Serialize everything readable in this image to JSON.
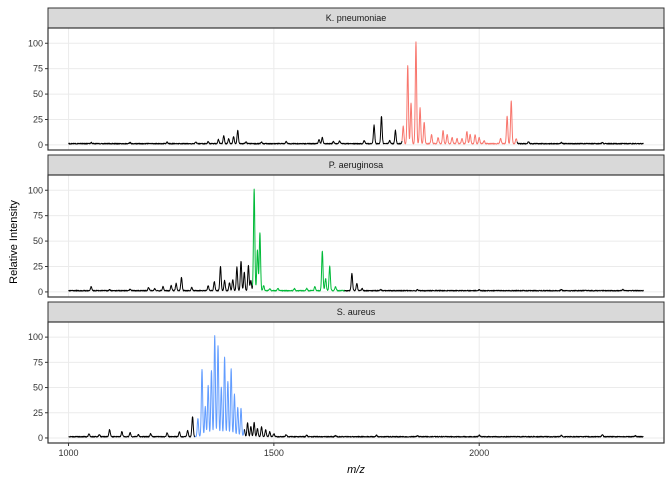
{
  "chart_data": {
    "type": "line",
    "facet": "vertical",
    "xlabel": "m/z",
    "ylabel": "Relative Intensity",
    "xlim": [
      950,
      2450
    ],
    "ylim": [
      -5,
      115
    ],
    "x_ticks": [
      1000,
      1500,
      2000
    ],
    "y_ticks": [
      0,
      25,
      50,
      75,
      100
    ],
    "grid": true,
    "colors": {
      "baseline": "#000000",
      "K. pneumoniae": "#F8766D",
      "P. aeruginosa": "#00BA38",
      "S. aureus": "#619CFF"
    },
    "panels": [
      {
        "label": "K. pneumoniae",
        "color": "#F8766D",
        "highlight_range": [
          1812,
          2092
        ],
        "baseline": 0.8,
        "noise_seed": 1,
        "peaks": [
          [
            1055,
            1.2
          ],
          [
            1150,
            1.0
          ],
          [
            1240,
            1.5
          ],
          [
            1310,
            1.5
          ],
          [
            1340,
            2.0
          ],
          [
            1365,
            4.0
          ],
          [
            1378,
            8.0
          ],
          [
            1390,
            5.0
          ],
          [
            1402,
            7.0
          ],
          [
            1412,
            13.0
          ],
          [
            1432,
            2.0
          ],
          [
            1470,
            1.5
          ],
          [
            1530,
            2.0
          ],
          [
            1610,
            4.0
          ],
          [
            1618,
            6.0
          ],
          [
            1645,
            2.0
          ],
          [
            1660,
            2.5
          ],
          [
            1720,
            3.0
          ],
          [
            1744,
            18.0
          ],
          [
            1762,
            27.0
          ],
          [
            1782,
            3.0
          ],
          [
            1796,
            13.0
          ],
          [
            1815,
            17.0
          ],
          [
            1826,
            77.0
          ],
          [
            1834,
            40.0
          ],
          [
            1846,
            100.0
          ],
          [
            1856,
            35.0
          ],
          [
            1866,
            21.0
          ],
          [
            1884,
            9.0
          ],
          [
            1900,
            6.0
          ],
          [
            1912,
            13.0
          ],
          [
            1922,
            9.0
          ],
          [
            1934,
            6.0
          ],
          [
            1946,
            5.0
          ],
          [
            1958,
            5.0
          ],
          [
            1970,
            12.0
          ],
          [
            1978,
            9.0
          ],
          [
            1990,
            9.0
          ],
          [
            2000,
            6.0
          ],
          [
            2012,
            3.0
          ],
          [
            2052,
            5.0
          ],
          [
            2068,
            27.0
          ],
          [
            2078,
            42.0
          ],
          [
            2090,
            5.0
          ],
          [
            2120,
            2.0
          ],
          [
            2200,
            1.0
          ],
          [
            2300,
            1.0
          ]
        ]
      },
      {
        "label": "P. aeruginosa",
        "color": "#00BA38",
        "highlight_range": [
          1448,
          1672
        ],
        "baseline": 0.8,
        "noise_seed": 7,
        "peaks": [
          [
            1055,
            4.0
          ],
          [
            1100,
            1.0
          ],
          [
            1150,
            1.5
          ],
          [
            1195,
            3.0
          ],
          [
            1210,
            2.0
          ],
          [
            1230,
            4.0
          ],
          [
            1250,
            5.0
          ],
          [
            1262,
            7.0
          ],
          [
            1275,
            13.0
          ],
          [
            1300,
            3.0
          ],
          [
            1340,
            5.0
          ],
          [
            1355,
            9.0
          ],
          [
            1370,
            24.0
          ],
          [
            1380,
            10.0
          ],
          [
            1392,
            8.0
          ],
          [
            1400,
            11.0
          ],
          [
            1410,
            23.0
          ],
          [
            1420,
            29.0
          ],
          [
            1428,
            18.0
          ],
          [
            1438,
            25.0
          ],
          [
            1444,
            10.0
          ],
          [
            1452,
            100.0
          ],
          [
            1460,
            40.0
          ],
          [
            1466,
            57.0
          ],
          [
            1475,
            5.0
          ],
          [
            1490,
            2.0
          ],
          [
            1510,
            2.0
          ],
          [
            1550,
            2.0
          ],
          [
            1580,
            2.0
          ],
          [
            1600,
            4.0
          ],
          [
            1618,
            39.0
          ],
          [
            1626,
            12.0
          ],
          [
            1636,
            24.0
          ],
          [
            1650,
            4.0
          ],
          [
            1690,
            17.0
          ],
          [
            1702,
            7.0
          ],
          [
            1715,
            2.0
          ],
          [
            1760,
            1.0
          ],
          [
            1850,
            1.0
          ],
          [
            2000,
            1.0
          ],
          [
            2200,
            1.0
          ],
          [
            2350,
            1.0
          ]
        ]
      },
      {
        "label": "S. aureus",
        "color": "#619CFF",
        "highlight_range": [
          1308,
          1428
        ],
        "baseline": 0.8,
        "noise_seed": 13,
        "peaks": [
          [
            1050,
            3.0
          ],
          [
            1075,
            2.0
          ],
          [
            1100,
            7.0
          ],
          [
            1130,
            5.0
          ],
          [
            1150,
            4.0
          ],
          [
            1170,
            2.0
          ],
          [
            1200,
            3.0
          ],
          [
            1240,
            4.0
          ],
          [
            1270,
            5.0
          ],
          [
            1290,
            6.0
          ],
          [
            1302,
            20.0
          ],
          [
            1315,
            18.0
          ],
          [
            1325,
            67.0
          ],
          [
            1333,
            30.0
          ],
          [
            1340,
            51.0
          ],
          [
            1348,
            66.0
          ],
          [
            1356,
            100.0
          ],
          [
            1364,
            90.0
          ],
          [
            1372,
            49.0
          ],
          [
            1380,
            79.0
          ],
          [
            1388,
            55.0
          ],
          [
            1396,
            67.0
          ],
          [
            1404,
            42.0
          ],
          [
            1412,
            29.0
          ],
          [
            1420,
            28.0
          ],
          [
            1428,
            7.0
          ],
          [
            1436,
            14.0
          ],
          [
            1444,
            10.0
          ],
          [
            1452,
            14.0
          ],
          [
            1460,
            8.0
          ],
          [
            1470,
            10.0
          ],
          [
            1480,
            7.0
          ],
          [
            1490,
            5.0
          ],
          [
            1500,
            3.0
          ],
          [
            1530,
            2.0
          ],
          [
            1580,
            1.5
          ],
          [
            1650,
            1.0
          ],
          [
            1750,
            1.5
          ],
          [
            1850,
            1.0
          ],
          [
            2000,
            1.5
          ],
          [
            2200,
            1.5
          ],
          [
            2300,
            2.0
          ],
          [
            2380,
            1.0
          ]
        ]
      }
    ]
  }
}
